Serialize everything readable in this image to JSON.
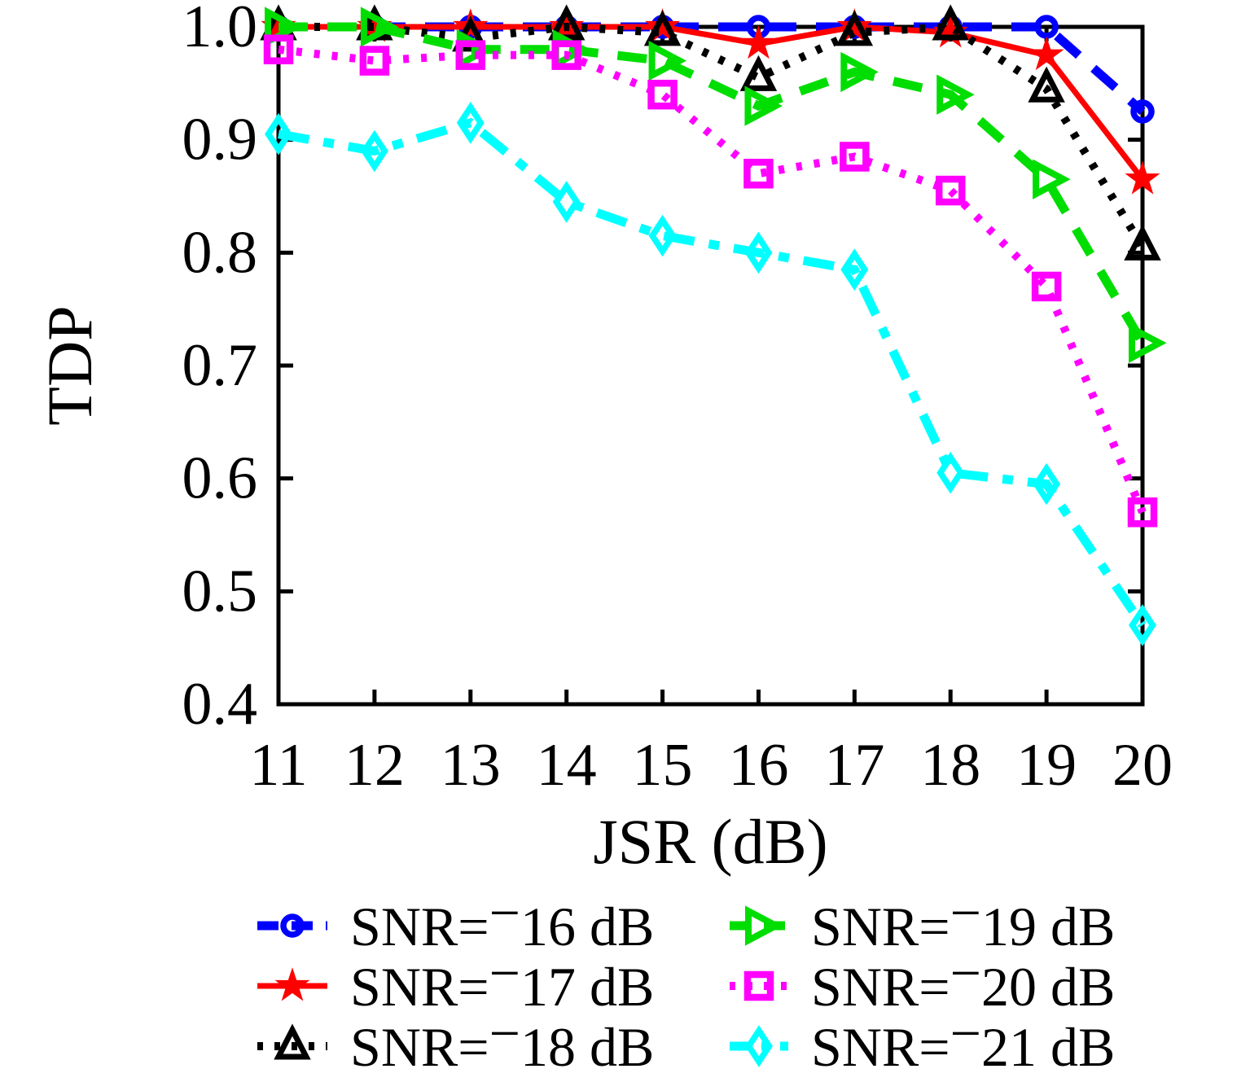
{
  "figure": {
    "title": "",
    "xlabel": "JSR (dB)",
    "ylabel": "TDP"
  },
  "chart_data": {
    "type": "line",
    "title": "",
    "xlabel": "JSR (dB)",
    "ylabel": "TDP",
    "x": [
      11,
      12,
      13,
      14,
      15,
      16,
      17,
      18,
      19,
      20
    ],
    "xlim": [
      11,
      20
    ],
    "ylim": [
      0.4,
      1.0
    ],
    "xticks": [
      11,
      12,
      13,
      14,
      15,
      16,
      17,
      18,
      19,
      20
    ],
    "yticks": [
      0.4,
      0.5,
      0.6,
      0.7,
      0.8,
      0.9,
      1.0
    ],
    "grid": false,
    "legend_position": "below-two-columns",
    "series": [
      {
        "name": "SNR=−16 dB",
        "color": "#0000ff",
        "line": "dash",
        "marker": "circle",
        "values": [
          1.0,
          1.0,
          1.0,
          1.0,
          1.0,
          1.0,
          1.0,
          1.0,
          1.0,
          0.925
        ]
      },
      {
        "name": "SNR=−17 dB",
        "color": "#ff0000",
        "line": "solid",
        "marker": "star",
        "values": [
          1.0,
          1.0,
          1.0,
          1.0,
          1.0,
          0.985,
          1.0,
          0.995,
          0.975,
          0.865
        ]
      },
      {
        "name": "SNR=−18 dB",
        "color": "#000000",
        "line": "dot",
        "marker": "triangle-up",
        "values": [
          1.0,
          1.0,
          0.99,
          1.0,
          0.995,
          0.955,
          0.995,
          1.0,
          0.945,
          0.805
        ]
      },
      {
        "name": "SNR=−19 dB",
        "color": "#00dd00",
        "line": "dash",
        "marker": "triangle-right",
        "values": [
          1.0,
          1.0,
          0.98,
          0.98,
          0.97,
          0.93,
          0.96,
          0.94,
          0.865,
          0.72
        ]
      },
      {
        "name": "SNR=−20 dB",
        "color": "#ff00ff",
        "line": "dot",
        "marker": "square",
        "values": [
          0.98,
          0.97,
          0.975,
          0.975,
          0.94,
          0.87,
          0.885,
          0.855,
          0.77,
          0.57
        ]
      },
      {
        "name": "SNR=−21 dB",
        "color": "#00ffff",
        "line": "dashdot",
        "marker": "diamond",
        "values": [
          0.905,
          0.89,
          0.915,
          0.845,
          0.815,
          0.8,
          0.785,
          0.605,
          0.595,
          0.47
        ]
      }
    ]
  }
}
